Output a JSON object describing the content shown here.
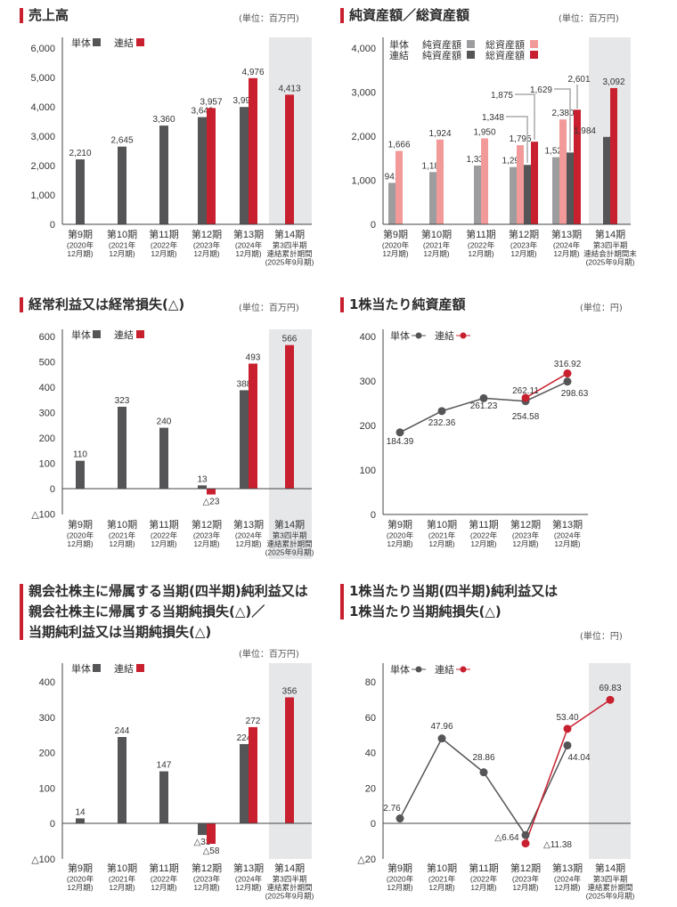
{
  "colors": {
    "accent": "#c8202f",
    "single": "#555557",
    "single_light": "#9d9d9f",
    "total_light": "#f29a9a",
    "shade": "#e6e7e9"
  },
  "panels": [
    {
      "title": [
        "売上高"
      ],
      "unit": "(単位：百万円)"
    },
    {
      "title": [
        "純資産額／総資産額"
      ],
      "unit": "(単位：百万円)"
    },
    {
      "title": [
        "経常利益又は経常損失(△)"
      ],
      "unit": "(単位：百万円)"
    },
    {
      "title": [
        "1株当たり純資産額"
      ],
      "unit": "(単位：円)"
    },
    {
      "title": [
        "親会社株主に帰属する当期(四半期)純利益又は",
        "親会社株主に帰属する当期純損失(△)／",
        "当期純利益又は当期純損失(△)"
      ],
      "unit": "(単位：百万円)"
    },
    {
      "title": [
        "1株当たり当期(四半期)純利益又は",
        "1株当たり当期純損失(△)"
      ],
      "unit": "(単位：円)"
    }
  ],
  "chart_data": [
    {
      "type": "bar",
      "title": "売上高",
      "ylim": [
        0,
        6000
      ],
      "y_ticks": [
        {
          "value": 0,
          "label": "0"
        },
        {
          "value": 1000,
          "label": "1,000"
        },
        {
          "value": 2000,
          "label": "2,000"
        },
        {
          "value": 3000,
          "label": "3,000"
        },
        {
          "value": 4000,
          "label": "4,000"
        },
        {
          "value": 5000,
          "label": "5,000"
        },
        {
          "value": 6000,
          "label": "6,000"
        }
      ],
      "categories": [
        [
          "第9期",
          "(2020年",
          "12月期)"
        ],
        [
          "第10期",
          "(2021年",
          "12月期)"
        ],
        [
          "第11期",
          "(2022年",
          "12月期)"
        ],
        [
          "第12期",
          "(2023年",
          "12月期)"
        ],
        [
          "第13期",
          "(2024年",
          "12月期)"
        ],
        [
          "第14期",
          "第3四半期",
          "連結累計期間",
          "(2025年9月期)"
        ]
      ],
      "legend": [
        "単体",
        "連結"
      ],
      "series": [
        {
          "name": "単体",
          "color": "#555557",
          "values": [
            2210,
            2645,
            3360,
            3649,
            3994,
            null
          ]
        },
        {
          "name": "連結",
          "color": "#c8202f",
          "values": [
            null,
            null,
            null,
            3957,
            4976,
            4413
          ]
        }
      ],
      "decimals": 0
    },
    {
      "type": "bar",
      "title": "純資産額／総資産額",
      "ylim": [
        0,
        4000
      ],
      "y_ticks": [
        {
          "value": 0,
          "label": "0"
        },
        {
          "value": 1000,
          "label": "1,000"
        },
        {
          "value": 2000,
          "label": "2,000"
        },
        {
          "value": 3000,
          "label": "3,000"
        },
        {
          "value": 4000,
          "label": "4,000"
        }
      ],
      "categories": [
        [
          "第9期",
          "(2020年",
          "12月期)"
        ],
        [
          "第10期",
          "(2021年",
          "12月期)"
        ],
        [
          "第11期",
          "(2022年",
          "12月期)"
        ],
        [
          "第12期",
          "(2023年",
          "12月期)"
        ],
        [
          "第13期",
          "(2024年",
          "12月期)"
        ],
        [
          "第14期",
          "第3四半期",
          "連結会計期間末",
          "(2025年9月期)"
        ]
      ],
      "legend": [
        "単体",
        "純資産額",
        "総資産額",
        "連結",
        "純資産額",
        "総資産額"
      ],
      "series": [
        {
          "name": "単体 純資産額",
          "color": "#9d9d9f",
          "values": [
            941,
            1186,
            1333,
            1299,
            1524,
            null
          ]
        },
        {
          "name": "単体 総資産額",
          "color": "#f29a9a",
          "values": [
            1666,
            1924,
            1950,
            1795,
            2380,
            null
          ]
        },
        {
          "name": "連結 純資産額",
          "color": "#555557",
          "values": [
            null,
            null,
            null,
            1348,
            1629,
            1984
          ]
        },
        {
          "name": "連結 総資産額",
          "color": "#c8202f",
          "values": [
            null,
            null,
            null,
            1875,
            2601,
            3092
          ]
        }
      ],
      "decimals": 0
    },
    {
      "type": "bar",
      "title": "経常利益又は経常損失(△)",
      "ylim": [
        -100,
        600
      ],
      "y_ticks": [
        {
          "value": -100,
          "label": "△100"
        },
        {
          "value": 0,
          "label": "0"
        },
        {
          "value": 100,
          "label": "100"
        },
        {
          "value": 200,
          "label": "200"
        },
        {
          "value": 300,
          "label": "300"
        },
        {
          "value": 400,
          "label": "400"
        },
        {
          "value": 500,
          "label": "500"
        },
        {
          "value": 600,
          "label": "600"
        }
      ],
      "categories": [
        [
          "第9期",
          "(2020年",
          "12月期)"
        ],
        [
          "第10期",
          "(2021年",
          "12月期)"
        ],
        [
          "第11期",
          "(2022年",
          "12月期)"
        ],
        [
          "第12期",
          "(2023年",
          "12月期)"
        ],
        [
          "第13期",
          "(2024年",
          "12月期)"
        ],
        [
          "第14期",
          "第3四半期",
          "連結累計期間",
          "(2025年9月期)"
        ]
      ],
      "legend": [
        "単体",
        "連結"
      ],
      "series": [
        {
          "name": "単体",
          "color": "#555557",
          "values": [
            110,
            323,
            240,
            13,
            388,
            null
          ]
        },
        {
          "name": "連結",
          "color": "#c8202f",
          "values": [
            null,
            null,
            null,
            -23,
            493,
            566
          ]
        }
      ],
      "decimals": 0
    },
    {
      "type": "line",
      "title": "1株当たり純資産額",
      "ylim": [
        0,
        400
      ],
      "y_ticks": [
        {
          "value": 0,
          "label": "0"
        },
        {
          "value": 100,
          "label": "100"
        },
        {
          "value": 200,
          "label": "200"
        },
        {
          "value": 300,
          "label": "300"
        },
        {
          "value": 400,
          "label": "400"
        }
      ],
      "categories": [
        [
          "第9期",
          "(2020年",
          "12月期)"
        ],
        [
          "第10期",
          "(2021年",
          "12月期)"
        ],
        [
          "第11期",
          "(2022年",
          "12月期)"
        ],
        [
          "第12期",
          "(2023年",
          "12月期)"
        ],
        [
          "第13期",
          "(2024年",
          "12月期)"
        ]
      ],
      "legend": [
        "単体",
        "連結"
      ],
      "series": [
        {
          "name": "単体",
          "color": "#555557",
          "values": [
            184.39,
            232.36,
            261.23,
            254.58,
            298.63
          ]
        },
        {
          "name": "連結",
          "color": "#c8202f",
          "values": [
            null,
            null,
            null,
            262.11,
            316.92
          ]
        }
      ],
      "decimals": 2
    },
    {
      "type": "bar",
      "title": "親会社株主に帰属する当期(四半期)純利益又は親会社株主に帰属する当期純損失(△)／当期純利益又は当期純損失(△)",
      "ylim": [
        -100,
        400
      ],
      "y_ticks": [
        {
          "value": -100,
          "label": "△100"
        },
        {
          "value": 0,
          "label": "0"
        },
        {
          "value": 100,
          "label": "100"
        },
        {
          "value": 200,
          "label": "200"
        },
        {
          "value": 300,
          "label": "300"
        },
        {
          "value": 400,
          "label": "400"
        }
      ],
      "categories": [
        [
          "第9期",
          "(2020年",
          "12月期)"
        ],
        [
          "第10期",
          "(2021年",
          "12月期)"
        ],
        [
          "第11期",
          "(2022年",
          "12月期)"
        ],
        [
          "第12期",
          "(2023年",
          "12月期)"
        ],
        [
          "第13期",
          "(2024年",
          "12月期)"
        ],
        [
          "第14期",
          "第3四半期",
          "連結累計期間",
          "(2025年9月期)"
        ]
      ],
      "legend": [
        "単体",
        "連結"
      ],
      "series": [
        {
          "name": "単体",
          "color": "#555557",
          "values": [
            14,
            244,
            147,
            -33,
            224,
            null
          ]
        },
        {
          "name": "連結",
          "color": "#c8202f",
          "values": [
            null,
            null,
            null,
            -58,
            272,
            356
          ]
        }
      ],
      "decimals": 0
    },
    {
      "type": "line",
      "title": "1株当たり当期(四半期)純利益又は1株当たり当期純損失(△)",
      "ylim": [
        -20,
        80
      ],
      "y_ticks": [
        {
          "value": -20,
          "label": "△20"
        },
        {
          "value": 0,
          "label": "0"
        },
        {
          "value": 20,
          "label": "20"
        },
        {
          "value": 40,
          "label": "40"
        },
        {
          "value": 60,
          "label": "60"
        },
        {
          "value": 80,
          "label": "80"
        }
      ],
      "categories": [
        [
          "第9期",
          "(2020年",
          "12月期)"
        ],
        [
          "第10期",
          "(2021年",
          "12月期)"
        ],
        [
          "第11期",
          "(2022年",
          "12月期)"
        ],
        [
          "第12期",
          "(2023年",
          "12月期)"
        ],
        [
          "第13期",
          "(2024年",
          "12月期)"
        ],
        [
          "第14期",
          "第3四半期",
          "連結累計期間",
          "(2025年9月期)"
        ]
      ],
      "legend": [
        "単体",
        "連結"
      ],
      "series": [
        {
          "name": "単体",
          "color": "#555557",
          "values": [
            2.76,
            47.96,
            28.86,
            -6.64,
            44.04,
            null
          ]
        },
        {
          "name": "連結",
          "color": "#c8202f",
          "values": [
            null,
            null,
            null,
            -11.38,
            53.4,
            69.83
          ]
        }
      ],
      "decimals": 2
    }
  ]
}
